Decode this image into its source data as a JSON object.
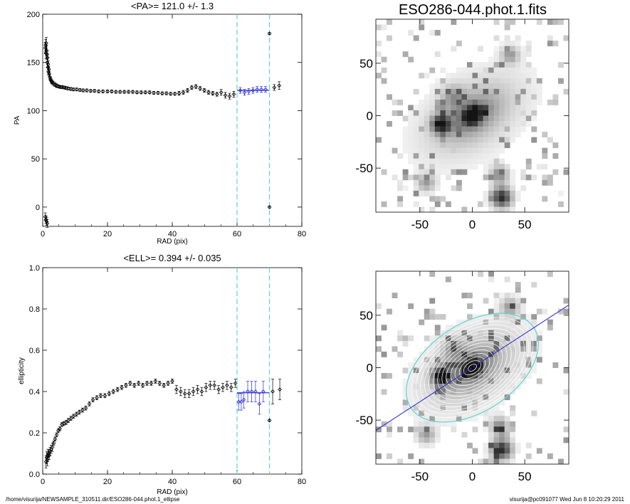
{
  "footer": {
    "left": "/home/visurija/NEWSAMPLE_310511.dir/ESO286-044.phot.1_ellipse",
    "right": "visurija@pc091077  Wed Jun  8 10:20:29 2011"
  },
  "colors": {
    "fit_line": "#2b2bd6",
    "window_line": "#5fd3d3",
    "markers": "#000000"
  },
  "chart_data": [
    {
      "type": "scatter",
      "title": "<PA>= 121.0 +/-   1.3",
      "xlabel": "RAD (pix)",
      "ylabel": "PA",
      "xlim": [
        0,
        80
      ],
      "ylim": [
        -20,
        200
      ],
      "xticks": [
        0,
        20,
        40,
        60,
        80
      ],
      "yticks": [
        0,
        50,
        100,
        150,
        200
      ],
      "grid": false,
      "vlines": [
        60,
        70
      ],
      "mean_line": {
        "x": [
          60,
          70
        ],
        "y": 121.0
      },
      "series": [
        {
          "x": [
            0.8,
            0.9,
            1.0,
            1.1,
            1.2,
            1.3,
            1.4,
            1.5,
            1.6,
            1.7,
            1.8,
            1.9,
            2.0,
            2.2,
            2.4,
            2.6,
            2.8,
            3.0,
            3.4,
            3.8,
            4.2,
            4.6,
            5.0,
            5.5,
            6.0,
            6.6,
            7.2,
            7.9,
            8.7,
            9.5,
            10.5,
            11.5,
            12.5,
            13.6,
            14.8,
            16.0,
            17.3,
            18.6,
            20.0,
            21.3,
            22.6,
            23.9,
            25.2,
            26.5,
            27.8,
            29.1,
            30.4,
            31.7,
            33.0,
            34.3,
            35.6,
            36.9,
            38.2,
            39.5,
            40.8,
            42.1,
            43.4,
            44.7,
            46.0,
            47.3,
            48.6,
            49.9,
            51.2,
            52.5,
            53.8,
            55.1,
            56.4,
            57.7,
            59.0
          ],
          "y": [
            165,
            168,
            160,
            170,
            162,
            158,
            150,
            155,
            145,
            148,
            140,
            143,
            138,
            135,
            133,
            131,
            130,
            129,
            128,
            127,
            126,
            125.5,
            125,
            124.5,
            124.5,
            124,
            123.5,
            123,
            122.5,
            122,
            122,
            121.5,
            121,
            121,
            120.5,
            120.5,
            120,
            120,
            120,
            120,
            119.5,
            119.5,
            119.5,
            119.5,
            119.5,
            119,
            119,
            119,
            119,
            118.5,
            118.5,
            118,
            118,
            117.5,
            117.5,
            118,
            119,
            121,
            124,
            125,
            123,
            121,
            119,
            118,
            117,
            119,
            116,
            115,
            117
          ],
          "err": [
            6,
            6,
            6,
            6,
            5,
            5,
            5,
            4,
            4,
            4,
            3,
            3,
            3,
            3,
            2,
            2,
            2,
            2,
            2,
            2,
            2,
            1.5,
            1.5,
            1.5,
            1.5,
            1.5,
            1.5,
            1.5,
            1.5,
            1.5,
            1.5,
            1.5,
            1.5,
            1.5,
            1.5,
            1.5,
            1.5,
            1.5,
            1.5,
            1.5,
            1.5,
            1.5,
            1.5,
            1.5,
            1.5,
            1.5,
            1.5,
            1.5,
            1.5,
            1.5,
            1.5,
            1.5,
            1.5,
            1.5,
            1.5,
            2,
            2,
            2,
            2,
            2,
            2,
            2,
            2,
            2,
            2,
            3,
            3,
            3,
            3
          ]
        },
        {
          "x": [
            0.8,
            1.0,
            1.2,
            1.4
          ],
          "y": [
            -10,
            -13,
            -15,
            -17
          ],
          "err": [
            4,
            4,
            4,
            4
          ]
        },
        {
          "x": [
            61,
            62.3,
            63.6,
            64.9,
            66.2,
            67.5,
            68.8
          ],
          "y": [
            121,
            119,
            120,
            121,
            122,
            122,
            122
          ],
          "err": [
            3,
            3,
            3,
            3,
            3,
            3,
            3
          ]
        },
        {
          "x": [
            70,
            70,
            71.5,
            73
          ],
          "y": [
            180,
            0,
            124,
            126
          ],
          "err": [
            1,
            1,
            3,
            4
          ]
        }
      ]
    },
    {
      "type": "scatter",
      "title": "<ELL>= 0.394 +/-  0.035",
      "xlabel": "RAD (pix)",
      "ylabel": "ellipticity",
      "xlim": [
        0,
        80
      ],
      "ylim": [
        0.0,
        1.0
      ],
      "xticks": [
        0,
        20,
        40,
        60,
        80
      ],
      "yticks": [
        "0.0",
        "0.2",
        "0.4",
        "0.6",
        "0.8",
        "1.0"
      ],
      "grid": false,
      "vlines": [
        60,
        70
      ],
      "mean_line": {
        "x": [
          60,
          70
        ],
        "y": 0.394
      },
      "series": [
        {
          "x": [
            1.0,
            1.2,
            1.4,
            1.6,
            1.8,
            2.0,
            2.3,
            2.6,
            3.0,
            3.4,
            3.8,
            4.3,
            4.8,
            5.3,
            5.9,
            6.5,
            7.2,
            7.9,
            8.7,
            9.5,
            10.4,
            11.3,
            12.3,
            13.3,
            14.4,
            15.5,
            16.7,
            17.9,
            19.2,
            20.5,
            21.8,
            23.1,
            24.4,
            25.7,
            27.0,
            28.3,
            29.6,
            30.9,
            32.2,
            33.5,
            34.8,
            36.1,
            37.4,
            38.7,
            40.0
          ],
          "y": [
            0.06,
            0.08,
            0.07,
            0.09,
            0.1,
            0.09,
            0.11,
            0.12,
            0.13,
            0.15,
            0.17,
            0.19,
            0.21,
            0.22,
            0.24,
            0.245,
            0.25,
            0.26,
            0.27,
            0.28,
            0.29,
            0.3,
            0.31,
            0.32,
            0.34,
            0.36,
            0.37,
            0.38,
            0.38,
            0.39,
            0.4,
            0.41,
            0.42,
            0.43,
            0.44,
            0.43,
            0.44,
            0.43,
            0.44,
            0.44,
            0.45,
            0.44,
            0.43,
            0.44,
            0.45
          ],
          "err": [
            0.03,
            0.03,
            0.03,
            0.03,
            0.02,
            0.02,
            0.02,
            0.02,
            0.02,
            0.01,
            0.01,
            0.01,
            0.01,
            0.01,
            0.01,
            0.01,
            0.01,
            0.01,
            0.01,
            0.01,
            0.01,
            0.01,
            0.01,
            0.01,
            0.01,
            0.01,
            0.01,
            0.01,
            0.01,
            0.01,
            0.01,
            0.01,
            0.01,
            0.01,
            0.01,
            0.01,
            0.01,
            0.01,
            0.01,
            0.01,
            0.01,
            0.01,
            0.01,
            0.01,
            0.01
          ]
        },
        {
          "x": [
            41.3,
            42.6,
            43.9,
            45.2,
            46.5,
            47.8,
            49.1,
            50.4,
            51.7,
            53.0,
            54.3,
            55.6,
            56.9,
            58.2,
            59.5
          ],
          "y": [
            0.41,
            0.4,
            0.39,
            0.39,
            0.4,
            0.41,
            0.4,
            0.42,
            0.43,
            0.43,
            0.41,
            0.42,
            0.43,
            0.42,
            0.44
          ],
          "err": [
            0.02,
            0.02,
            0.02,
            0.02,
            0.02,
            0.02,
            0.02,
            0.02,
            0.02,
            0.02,
            0.02,
            0.02,
            0.02,
            0.02,
            0.02
          ]
        },
        {
          "x": [
            60.5,
            61.3,
            62.1,
            63.3,
            64.5,
            65.7,
            66.9,
            68.1
          ],
          "y": [
            0.35,
            0.35,
            0.36,
            0.4,
            0.4,
            0.4,
            0.34,
            0.4
          ],
          "err": [
            0.04,
            0.04,
            0.04,
            0.05,
            0.05,
            0.05,
            0.05,
            0.05
          ]
        },
        {
          "x": [
            70,
            71,
            73.2
          ],
          "y": [
            0.26,
            0.4,
            0.41
          ],
          "err": [
            0.005,
            0.06,
            0.05
          ]
        }
      ]
    },
    {
      "type": "heatmap",
      "title": "ESO286-044.phot.1.fits",
      "xlim": [
        -92,
        92
      ],
      "ylim": [
        -92,
        92
      ],
      "xticks": [
        "-50",
        "0",
        "50"
      ],
      "yticks": [
        "-50",
        "0",
        "50"
      ],
      "colormap": "inverted grayscale",
      "grid": false
    },
    {
      "type": "heatmap",
      "title": "",
      "xlim": [
        -92,
        92
      ],
      "ylim": [
        -92,
        92
      ],
      "xticks": [
        "-50",
        "0",
        "50"
      ],
      "yticks": [
        "-50",
        "0",
        "50"
      ],
      "colormap": "inverted grayscale",
      "overlay": "isophote ellipses with major-axis line",
      "grid": false
    }
  ]
}
